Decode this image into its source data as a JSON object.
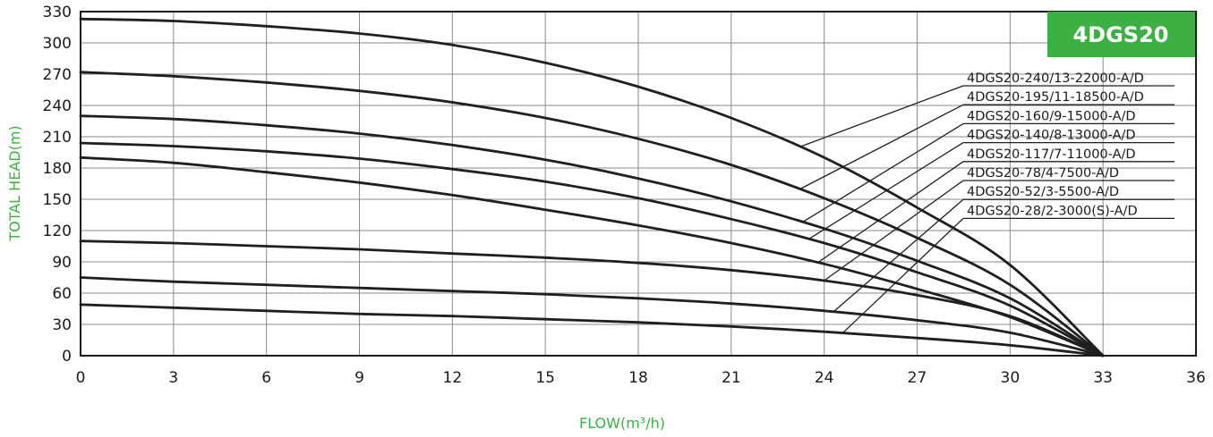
{
  "colors": {
    "accent": "#3cb043",
    "curve": "#1f1f1f",
    "grid": "#8a8a8a",
    "axis_title": "#3cb043"
  },
  "badge": {
    "label": "4DGS20"
  },
  "chart_data": {
    "type": "line",
    "title": "",
    "xlabel": "FLOW(m³/h)",
    "ylabel": "TOTAL HEAD(m)",
    "xlim": [
      0,
      36
    ],
    "ylim": [
      0,
      330
    ],
    "xticks": [
      0,
      3,
      6,
      9,
      12,
      15,
      18,
      21,
      24,
      27,
      30,
      33,
      36
    ],
    "yticks": [
      0,
      30,
      60,
      90,
      120,
      150,
      180,
      210,
      240,
      270,
      300,
      330
    ],
    "grid": true,
    "legend_position": "top-right",
    "series": [
      {
        "name": "4DGS20-240/13-22000-A/D",
        "x": [
          0,
          3,
          6,
          9,
          12,
          15,
          18,
          21,
          24,
          27,
          30,
          33
        ],
        "y": [
          323,
          321,
          316,
          309,
          298,
          281,
          258,
          228,
          190,
          142,
          87,
          0
        ],
        "label_at_x": 23.2
      },
      {
        "name": "4DGS20-195/11-18500-A/D",
        "x": [
          0,
          3,
          6,
          9,
          12,
          15,
          18,
          21,
          24,
          27,
          30,
          33
        ],
        "y": [
          272,
          268,
          262,
          254,
          243,
          228,
          208,
          183,
          151,
          113,
          68,
          0
        ],
        "label_at_x": 23.2
      },
      {
        "name": "4DGS20-160/9-15000-A/D",
        "x": [
          0,
          3,
          6,
          9,
          12,
          15,
          18,
          21,
          24,
          27,
          30,
          33
        ],
        "y": [
          230,
          227,
          221,
          213,
          202,
          188,
          170,
          148,
          122,
          91,
          55,
          0
        ],
        "label_at_x": 23.3
      },
      {
        "name": "4DGS20-140/8-13000-A/D",
        "x": [
          0,
          3,
          6,
          9,
          12,
          15,
          18,
          21,
          24,
          27,
          30,
          33
        ],
        "y": [
          204,
          201,
          196,
          189,
          179,
          167,
          151,
          131,
          108,
          80,
          48,
          0
        ],
        "label_at_x": 23.5
      },
      {
        "name": "4DGS20-117/7-11000-A/D",
        "x": [
          0,
          3,
          6,
          9,
          12,
          15,
          18,
          21,
          24,
          27,
          30,
          33
        ],
        "y": [
          190,
          185,
          176,
          166,
          154,
          140,
          125,
          108,
          88,
          64,
          37,
          0
        ],
        "label_at_x": 23.8
      },
      {
        "name": "4DGS20-78/4-7500-A/D",
        "x": [
          0,
          3,
          6,
          9,
          12,
          15,
          18,
          21,
          24,
          27,
          30,
          33
        ],
        "y": [
          110,
          108,
          105,
          102,
          98,
          94,
          89,
          82,
          72,
          58,
          38,
          0
        ],
        "label_at_x": 24.0
      },
      {
        "name": "4DGS20-52/3-5500-A/D",
        "x": [
          0,
          3,
          6,
          9,
          12,
          15,
          18,
          21,
          24,
          27,
          30,
          33
        ],
        "y": [
          75,
          71,
          68,
          65,
          62,
          59,
          55,
          50,
          43,
          34,
          22,
          0
        ],
        "label_at_x": 24.3
      },
      {
        "name": "4DGS20-28/2-3000(S)-A/D",
        "x": [
          0,
          3,
          6,
          9,
          12,
          15,
          18,
          21,
          24,
          27,
          30,
          33
        ],
        "y": [
          49,
          46,
          43,
          40,
          38,
          35,
          32,
          28,
          23,
          17,
          10,
          0
        ],
        "label_at_x": 24.6
      }
    ]
  }
}
